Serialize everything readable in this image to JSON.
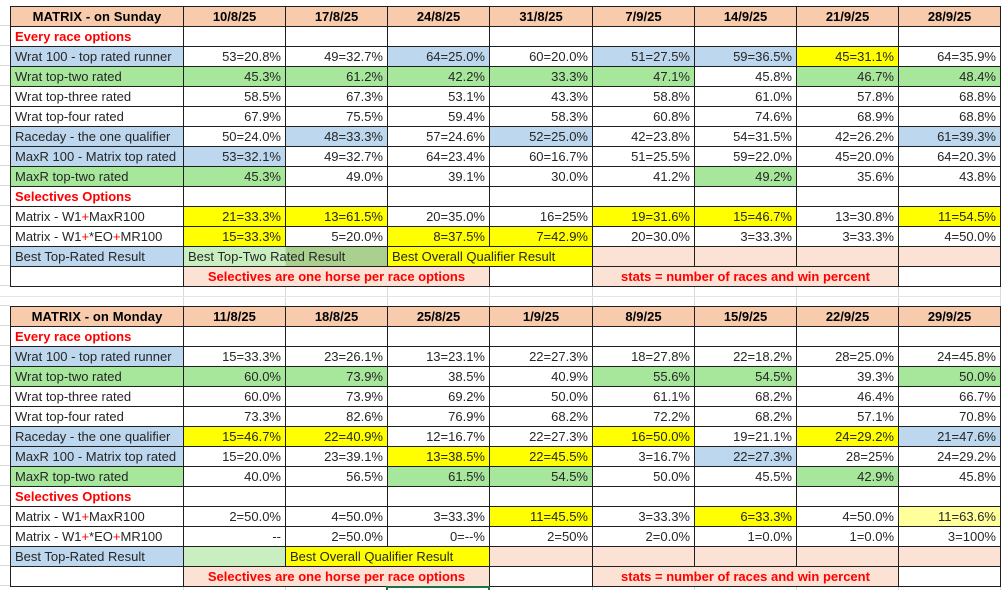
{
  "palette": {
    "header_pink": "#F8CBAD",
    "note_pink": "#FBE2D5",
    "blue": "#BDD7EE",
    "green": "#A6E79B",
    "light_green": "#C9EFC0",
    "olive_green": "#A9D08E",
    "yellow": "#FFFF00",
    "light_yellow": "#FFFF9C",
    "red_text": "#FF0000",
    "selection_green": "#1F7244"
  },
  "selection_box": {
    "under_column": "25/8/25",
    "color": "#1F7244"
  },
  "tables": [
    {
      "title": "MATRIX - on Sunday",
      "dates": [
        "10/8/25",
        "17/8/25",
        "24/8/25",
        "31/8/25",
        "7/9/25",
        "14/9/25",
        "21/9/25",
        "28/9/25"
      ],
      "rows": [
        {
          "label": "Every race options",
          "lbg": "w",
          "lcls": "red",
          "cells": [
            [
              "",
              "w"
            ],
            [
              "",
              "w"
            ],
            [
              "",
              "w"
            ],
            [
              "",
              "w"
            ],
            [
              "",
              "w"
            ],
            [
              "",
              "w"
            ],
            [
              "",
              "w"
            ],
            [
              "",
              "w"
            ]
          ]
        },
        {
          "label": "Wrat 100 - top rated runner",
          "lbg": "b",
          "cells": [
            [
              "53=20.8%",
              "w"
            ],
            [
              "49=32.7%",
              "w"
            ],
            [
              "64=25.0%",
              "b"
            ],
            [
              "60=20.0%",
              "w"
            ],
            [
              "51=27.5%",
              "b"
            ],
            [
              "59=36.5%",
              "b"
            ],
            [
              "45=31.1%",
              "y"
            ],
            [
              "64=35.9%",
              "w"
            ]
          ]
        },
        {
          "label": "Wrat top-two rated",
          "lbg": "g",
          "cells": [
            [
              "45.3%",
              "g"
            ],
            [
              "61.2%",
              "g"
            ],
            [
              "42.2%",
              "g"
            ],
            [
              "33.3%",
              "g"
            ],
            [
              "47.1%",
              "g"
            ],
            [
              "45.8%",
              "w"
            ],
            [
              "46.7%",
              "g"
            ],
            [
              "48.4%",
              "g"
            ]
          ]
        },
        {
          "label": "Wrat top-three rated",
          "lbg": "w",
          "cells": [
            [
              "58.5%",
              "w"
            ],
            [
              "67.3%",
              "w"
            ],
            [
              "53.1%",
              "w"
            ],
            [
              "43.3%",
              "w"
            ],
            [
              "58.8%",
              "w"
            ],
            [
              "61.0%",
              "w"
            ],
            [
              "57.8%",
              "w"
            ],
            [
              "68.8%",
              "w"
            ]
          ]
        },
        {
          "label": "Wrat top-four rated",
          "lbg": "w",
          "cells": [
            [
              "67.9%",
              "w"
            ],
            [
              "75.5%",
              "w"
            ],
            [
              "59.4%",
              "w"
            ],
            [
              "58.3%",
              "w"
            ],
            [
              "60.8%",
              "w"
            ],
            [
              "74.6%",
              "w"
            ],
            [
              "68.9%",
              "w"
            ],
            [
              "68.8%",
              "w"
            ]
          ]
        },
        {
          "label": "Raceday - the one qualifier",
          "lbg": "b",
          "cells": [
            [
              "50=24.0%",
              "w"
            ],
            [
              "48=33.3%",
              "b"
            ],
            [
              "57=24.6%",
              "w"
            ],
            [
              "52=25.0%",
              "b"
            ],
            [
              "42=23.8%",
              "w"
            ],
            [
              "54=31.5%",
              "w"
            ],
            [
              "42=26.2%",
              "w"
            ],
            [
              "61=39.3%",
              "b"
            ]
          ]
        },
        {
          "label": "MaxR 100 - Matrix top rated",
          "lbg": "b",
          "cells": [
            [
              "53=32.1%",
              "b"
            ],
            [
              "49=32.7%",
              "w"
            ],
            [
              "64=23.4%",
              "w"
            ],
            [
              "60=16.7%",
              "w"
            ],
            [
              "51=25.5%",
              "w"
            ],
            [
              "59=22.0%",
              "w"
            ],
            [
              "45=20.0%",
              "w"
            ],
            [
              "64=20.3%",
              "w"
            ]
          ]
        },
        {
          "label": "MaxR top-two rated",
          "lbg": "g",
          "cells": [
            [
              "45.3%",
              "g"
            ],
            [
              "49.0%",
              "w"
            ],
            [
              "39.1%",
              "w"
            ],
            [
              "30.0%",
              "w"
            ],
            [
              "41.2%",
              "w"
            ],
            [
              "49.2%",
              "g"
            ],
            [
              "35.6%",
              "w"
            ],
            [
              "43.8%",
              "w"
            ]
          ]
        },
        {
          "label": "Selectives Options",
          "lbg": "w",
          "lcls": "red",
          "cells": [
            [
              "",
              "w"
            ],
            [
              "",
              "w"
            ],
            [
              "",
              "w"
            ],
            [
              "",
              "w"
            ],
            [
              "",
              "w"
            ],
            [
              "",
              "w"
            ],
            [
              "",
              "w"
            ],
            [
              "",
              "w"
            ]
          ]
        },
        {
          "label": "Matrix - W1+MaxR100",
          "lbg": "w",
          "cells": [
            [
              "21=33.3%",
              "y"
            ],
            [
              "13=61.5%",
              "y"
            ],
            [
              "20=35.0%",
              "w"
            ],
            [
              "16=25%",
              "w"
            ],
            [
              "19=31.6%",
              "y"
            ],
            [
              "15=46.7%",
              "y"
            ],
            [
              "13=30.8%",
              "w"
            ],
            [
              "11=54.5%",
              "y"
            ]
          ]
        },
        {
          "label": "Matrix - W1+*EO+MR100",
          "lbg": "w",
          "cells": [
            [
              "15=33.3%",
              "y"
            ],
            [
              "5=20.0%",
              "w"
            ],
            [
              "8=37.5%",
              "y"
            ],
            [
              "7=42.9%",
              "y"
            ],
            [
              "20=30.0%",
              "w"
            ],
            [
              "3=33.3%",
              "w"
            ],
            [
              "3=33.3%",
              "w"
            ],
            [
              "4=50.0%",
              "w"
            ]
          ]
        },
        {
          "label": "Best Top-Rated Result",
          "lbg": "b",
          "cells": [
            [
              "Best Top-Two Rated Result",
              "g2",
              2,
              "l"
            ],
            [
              "Best Overall Qualifier Result",
              "y",
              2,
              "l"
            ],
            [
              "",
              "np"
            ],
            [
              "",
              "np"
            ],
            [
              "",
              "np"
            ],
            [
              "",
              "np"
            ]
          ]
        },
        {
          "label": "",
          "lbg": "w",
          "cells": [
            [
              "Selectives are one horse per race options",
              "np",
              3,
              "c",
              "red"
            ],
            [
              "",
              "w"
            ],
            [
              "stats = number of races and win percent",
              "np",
              3,
              "c",
              "red"
            ],
            [
              "",
              "w"
            ]
          ]
        }
      ]
    },
    {
      "title": "MATRIX - on Monday",
      "dates": [
        "11/8/25",
        "18/8/25",
        "25/8/25",
        "1/9/25",
        "8/9/25",
        "15/9/25",
        "22/9/25",
        "29/9/25"
      ],
      "rows": [
        {
          "label": "Every race options",
          "lbg": "w",
          "lcls": "red",
          "cells": [
            [
              "",
              "w"
            ],
            [
              "",
              "w"
            ],
            [
              "",
              "w"
            ],
            [
              "",
              "w"
            ],
            [
              "",
              "w"
            ],
            [
              "",
              "w"
            ],
            [
              "",
              "w"
            ],
            [
              "",
              "w"
            ]
          ]
        },
        {
          "label": "Wrat 100 - top rated runner",
          "lbg": "b",
          "cells": [
            [
              "15=33.3%",
              "w"
            ],
            [
              "23=26.1%",
              "w"
            ],
            [
              "13=23.1%",
              "w"
            ],
            [
              "22=27.3%",
              "w"
            ],
            [
              "18=27.8%",
              "w"
            ],
            [
              "22=18.2%",
              "w"
            ],
            [
              "28=25.0%",
              "w"
            ],
            [
              "24=45.8%",
              "w"
            ]
          ]
        },
        {
          "label": "Wrat top-two rated",
          "lbg": "g",
          "cells": [
            [
              "60.0%",
              "g"
            ],
            [
              "73.9%",
              "g"
            ],
            [
              "38.5%",
              "w"
            ],
            [
              "40.9%",
              "w"
            ],
            [
              "55.6%",
              "g"
            ],
            [
              "54.5%",
              "g"
            ],
            [
              "39.3%",
              "w"
            ],
            [
              "50.0%",
              "g"
            ]
          ]
        },
        {
          "label": "Wrat top-three rated",
          "lbg": "w",
          "cells": [
            [
              "60.0%",
              "w"
            ],
            [
              "73.9%",
              "w"
            ],
            [
              "69.2%",
              "w"
            ],
            [
              "50.0%",
              "w"
            ],
            [
              "61.1%",
              "w"
            ],
            [
              "68.2%",
              "w"
            ],
            [
              "46.4%",
              "w"
            ],
            [
              "66.7%",
              "w"
            ]
          ]
        },
        {
          "label": "Wrat top-four rated",
          "lbg": "w",
          "cells": [
            [
              "73.3%",
              "w"
            ],
            [
              "82.6%",
              "w"
            ],
            [
              "76.9%",
              "w"
            ],
            [
              "68.2%",
              "w"
            ],
            [
              "72.2%",
              "w"
            ],
            [
              "68.2%",
              "w"
            ],
            [
              "57.1%",
              "w"
            ],
            [
              "70.8%",
              "w"
            ]
          ]
        },
        {
          "label": "Raceday - the one qualifier",
          "lbg": "b",
          "cells": [
            [
              "15=46.7%",
              "y"
            ],
            [
              "22=40.9%",
              "y"
            ],
            [
              "12=16.7%",
              "w"
            ],
            [
              "22=27.3%",
              "w"
            ],
            [
              "16=50.0%",
              "y"
            ],
            [
              "19=21.1%",
              "w"
            ],
            [
              "24=29.2%",
              "y"
            ],
            [
              "21=47.6%",
              "b"
            ]
          ]
        },
        {
          "label": "MaxR 100 - Matrix top rated",
          "lbg": "b",
          "cells": [
            [
              "15=20.0%",
              "w"
            ],
            [
              "23=39.1%",
              "w"
            ],
            [
              "13=38.5%",
              "y"
            ],
            [
              "22=45.5%",
              "y"
            ],
            [
              "3=16.7%",
              "w"
            ],
            [
              "22=27.3%",
              "b"
            ],
            [
              "28=25%",
              "w"
            ],
            [
              "24=29.2%",
              "w"
            ]
          ]
        },
        {
          "label": "MaxR top-two rated",
          "lbg": "g",
          "cells": [
            [
              "40.0%",
              "w"
            ],
            [
              "56.5%",
              "w"
            ],
            [
              "61.5%",
              "g"
            ],
            [
              "54.5%",
              "g"
            ],
            [
              "50.0%",
              "w"
            ],
            [
              "45.5%",
              "w"
            ],
            [
              "42.9%",
              "g"
            ],
            [
              "45.8%",
              "w"
            ]
          ]
        },
        {
          "label": "Selectives Options",
          "lbg": "w",
          "lcls": "red",
          "cells": [
            [
              "",
              "w"
            ],
            [
              "",
              "w"
            ],
            [
              "",
              "w"
            ],
            [
              "",
              "w"
            ],
            [
              "",
              "w"
            ],
            [
              "",
              "w"
            ],
            [
              "",
              "w"
            ],
            [
              "",
              "w"
            ]
          ]
        },
        {
          "label": "Matrix - W1+MaxR100",
          "lbg": "w",
          "cells": [
            [
              "2=50.0%",
              "w"
            ],
            [
              "4=50.0%",
              "w"
            ],
            [
              "3=33.3%",
              "w"
            ],
            [
              "11=45.5%",
              "y"
            ],
            [
              "3=33.3%",
              "w"
            ],
            [
              "6=33.3%",
              "y"
            ],
            [
              "4=50.0%",
              "w"
            ],
            [
              "11=63.6%",
              "ly"
            ]
          ]
        },
        {
          "label": "Matrix - W1+*EO+MR100",
          "lbg": "w",
          "cells": [
            [
              "--",
              "w"
            ],
            [
              "2=50.0%",
              "w"
            ],
            [
              "0=--%",
              "w"
            ],
            [
              "2=50%",
              "w"
            ],
            [
              "2=0.0%",
              "w"
            ],
            [
              "1=0.0%",
              "w"
            ],
            [
              "1=0.0%",
              "w"
            ],
            [
              "3=100%",
              "w"
            ]
          ]
        },
        {
          "label": "Best Top-Rated Result",
          "lbg": "b",
          "cells": [
            [
              "",
              "lg"
            ],
            [
              "Best Overall Qualifier Result",
              "y",
              2,
              "l"
            ],
            [
              "",
              "np"
            ],
            [
              "",
              "np"
            ],
            [
              "",
              "np"
            ],
            [
              "",
              "np"
            ],
            [
              "",
              "np"
            ]
          ]
        },
        {
          "label": "",
          "lbg": "w",
          "cells": [
            [
              "Selectives are one horse per race options",
              "np",
              3,
              "c",
              "red"
            ],
            [
              "",
              "w"
            ],
            [
              "stats = number of races and win percent",
              "np",
              3,
              "c",
              "red"
            ],
            [
              "",
              "w"
            ]
          ]
        }
      ]
    }
  ]
}
